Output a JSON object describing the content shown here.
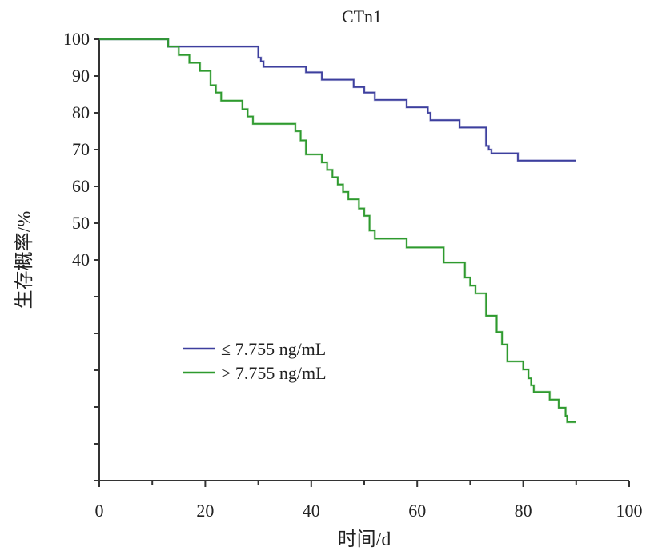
{
  "chart_data": {
    "type": "line",
    "step": true,
    "title": "CTn1",
    "xlabel": "时间/d",
    "ylabel": "生存概率/%",
    "xlim": [
      0,
      100
    ],
    "ylim": [
      -20,
      100
    ],
    "x_ticks": [
      0,
      20,
      40,
      60,
      80,
      100
    ],
    "y_ticks_labeled": [
      40,
      50,
      60,
      70,
      80,
      90,
      100
    ],
    "y_ticks_unlabeled": [
      30,
      20,
      10,
      0,
      -10,
      -20
    ],
    "grid": false,
    "legend_position": "center-left",
    "series": [
      {
        "name": "≤ 7.755 ng/mL",
        "color": "#3d3f9e",
        "points": [
          [
            0,
            100
          ],
          [
            13,
            98
          ],
          [
            30,
            95
          ],
          [
            30.5,
            94
          ],
          [
            31,
            92.5
          ],
          [
            39,
            91
          ],
          [
            42,
            89
          ],
          [
            48,
            87
          ],
          [
            50,
            85.5
          ],
          [
            52,
            83.5
          ],
          [
            58,
            81.5
          ],
          [
            62,
            80
          ],
          [
            62.5,
            78
          ],
          [
            68,
            76
          ],
          [
            73,
            71
          ],
          [
            73.5,
            70
          ],
          [
            74,
            69
          ],
          [
            79,
            67
          ],
          [
            90,
            67
          ]
        ]
      },
      {
        "name": "> 7.755 ng/mL",
        "color": "#2e9a2e",
        "points": [
          [
            0,
            100
          ],
          [
            13,
            98
          ],
          [
            15,
            95.7
          ],
          [
            17,
            93.6
          ],
          [
            19,
            91.4
          ],
          [
            21,
            87.5
          ],
          [
            22,
            85.5
          ],
          [
            23,
            83.3
          ],
          [
            27,
            81
          ],
          [
            28,
            79
          ],
          [
            29,
            77
          ],
          [
            37,
            75
          ],
          [
            38,
            72.5
          ],
          [
            39,
            68.7
          ],
          [
            42,
            66.5
          ],
          [
            43,
            64.5
          ],
          [
            44,
            62.5
          ],
          [
            45,
            60.5
          ],
          [
            46,
            58.5
          ],
          [
            47,
            56.5
          ],
          [
            49,
            54
          ],
          [
            50,
            52
          ],
          [
            51,
            48
          ],
          [
            52,
            45.8
          ],
          [
            58,
            43.4
          ],
          [
            65,
            39.3
          ],
          [
            69,
            35.2
          ],
          [
            70,
            33
          ],
          [
            71,
            30.9
          ],
          [
            73,
            24.8
          ],
          [
            75,
            20.4
          ],
          [
            76,
            17
          ],
          [
            77,
            12.4
          ],
          [
            80,
            10.2
          ],
          [
            81,
            7.8
          ],
          [
            81.5,
            5.9
          ],
          [
            82,
            4.1
          ],
          [
            85,
            2
          ],
          [
            86.7,
            -0.2
          ],
          [
            88,
            -2.4
          ],
          [
            88.3,
            -4.1
          ],
          [
            90,
            -4.1
          ]
        ]
      }
    ]
  }
}
